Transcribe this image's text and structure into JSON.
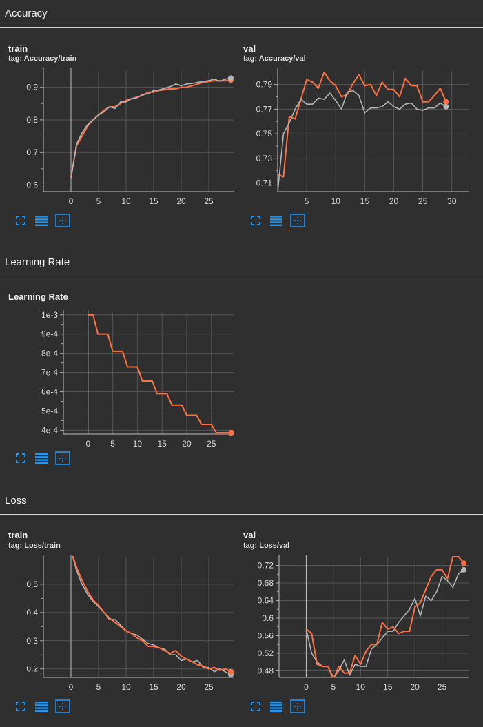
{
  "sections": {
    "accuracy": "Accuracy",
    "learning_rate": "Learning Rate",
    "loss": "Loss"
  },
  "cards": {
    "acc_train": {
      "title": "train",
      "tag": "tag: Accuracy/train"
    },
    "acc_val": {
      "title": "val",
      "tag": "tag: Accuracy/val"
    },
    "lr": {
      "title": "Learning Rate",
      "tag": ""
    },
    "loss_train": {
      "title": "train",
      "tag": "tag: Loss/train"
    },
    "loss_val": {
      "title": "val",
      "tag": "tag: Loss/val"
    }
  },
  "toolbar_icons": [
    "fullscreen-icon",
    "data-table-icon",
    "fit-domain-icon"
  ],
  "colors": {
    "orange": "#ff7043",
    "gray": "#b5b5b5",
    "accent": "#2196f3"
  },
  "chart_data": [
    {
      "id": "acc_train",
      "type": "line",
      "title": "train",
      "xlim": [
        -5,
        29.5
      ],
      "ylim": [
        0.58,
        0.95
      ],
      "xticks": [
        0,
        5,
        10,
        15,
        20,
        25
      ],
      "yticks": [
        0.6,
        0.7,
        0.8,
        0.9
      ],
      "ytick_labels": [
        "0.6",
        "0.7",
        "0.8",
        "0.9"
      ],
      "series": [
        {
          "color": "orange",
          "x": [
            0,
            1,
            2,
            3,
            4,
            5,
            6,
            7,
            8,
            9,
            10,
            11,
            12,
            13,
            14,
            15,
            16,
            17,
            18,
            19,
            20,
            21,
            22,
            23,
            24,
            25,
            26,
            27,
            28,
            29
          ],
          "y": [
            0.625,
            0.72,
            0.75,
            0.78,
            0.8,
            0.815,
            0.83,
            0.84,
            0.84,
            0.85,
            0.86,
            0.865,
            0.87,
            0.875,
            0.885,
            0.885,
            0.89,
            0.893,
            0.895,
            0.895,
            0.9,
            0.9,
            0.905,
            0.91,
            0.915,
            0.918,
            0.92,
            0.92,
            0.92,
            0.922
          ]
        },
        {
          "color": "gray",
          "x": [
            0,
            1,
            2,
            3,
            4,
            5,
            6,
            7,
            8,
            9,
            10,
            11,
            12,
            13,
            14,
            15,
            16,
            17,
            18,
            19,
            20,
            21,
            22,
            23,
            24,
            25,
            26,
            27,
            28,
            29
          ],
          "y": [
            0.62,
            0.725,
            0.76,
            0.785,
            0.8,
            0.815,
            0.825,
            0.84,
            0.835,
            0.855,
            0.855,
            0.865,
            0.868,
            0.878,
            0.88,
            0.89,
            0.892,
            0.897,
            0.902,
            0.91,
            0.905,
            0.91,
            0.912,
            0.915,
            0.918,
            0.92,
            0.925,
            0.918,
            0.925,
            0.928
          ]
        }
      ]
    },
    {
      "id": "acc_val",
      "type": "line",
      "title": "val",
      "xlim": [
        0,
        33
      ],
      "ylim": [
        0.703,
        0.801
      ],
      "xticks": [
        5,
        10,
        15,
        20,
        25,
        30
      ],
      "yticks": [
        0.71,
        0.73,
        0.75,
        0.77,
        0.79
      ],
      "ytick_labels": [
        "0.71",
        "0.73",
        "0.75",
        "0.77",
        "0.79"
      ],
      "series": [
        {
          "color": "orange",
          "x": [
            0,
            1,
            2,
            3,
            4,
            5,
            6,
            7,
            8,
            9,
            10,
            11,
            12,
            13,
            14,
            15,
            16,
            17,
            18,
            19,
            20,
            21,
            22,
            23,
            24,
            25,
            26,
            27,
            28,
            29
          ],
          "y": [
            0.717,
            0.715,
            0.764,
            0.762,
            0.778,
            0.794,
            0.792,
            0.787,
            0.8,
            0.793,
            0.789,
            0.78,
            0.782,
            0.791,
            0.798,
            0.789,
            0.79,
            0.781,
            0.792,
            0.786,
            0.786,
            0.78,
            0.795,
            0.789,
            0.789,
            0.776,
            0.776,
            0.781,
            0.787,
            0.776
          ]
        },
        {
          "color": "gray",
          "x": [
            0,
            1,
            2,
            3,
            4,
            5,
            6,
            7,
            8,
            9,
            10,
            11,
            12,
            13,
            14,
            15,
            16,
            17,
            18,
            19,
            20,
            21,
            22,
            23,
            24,
            25,
            26,
            27,
            28,
            29
          ],
          "y": [
            0.703,
            0.75,
            0.759,
            0.77,
            0.778,
            0.774,
            0.774,
            0.779,
            0.778,
            0.783,
            0.777,
            0.77,
            0.784,
            0.785,
            0.781,
            0.767,
            0.771,
            0.771,
            0.772,
            0.776,
            0.772,
            0.77,
            0.774,
            0.775,
            0.77,
            0.769,
            0.771,
            0.771,
            0.775,
            0.772
          ]
        }
      ]
    },
    {
      "id": "lr",
      "type": "line",
      "title": "Learning Rate",
      "xlim": [
        -5,
        29.5
      ],
      "ylim": [
        0.00038,
        0.00101
      ],
      "xticks": [
        0,
        5,
        10,
        15,
        20,
        25
      ],
      "yticks": [
        0.0004,
        0.0005,
        0.0006,
        0.0007,
        0.0008,
        0.0009,
        0.001
      ],
      "ytick_labels": [
        "4e-4",
        "5e-4",
        "6e-4",
        "7e-4",
        "8e-4",
        "9e-4",
        "1e-3"
      ],
      "series": [
        {
          "color": "gray",
          "x": [
            0,
            1,
            2,
            3,
            4,
            5,
            6,
            7,
            8,
            9,
            10,
            11,
            12,
            13,
            14,
            15,
            16,
            17,
            18,
            19,
            20,
            21,
            22,
            23,
            24,
            25,
            26,
            27,
            28,
            29
          ],
          "y": [
            0.001,
            0.001,
            0.0009,
            0.0009,
            0.0009,
            0.00081,
            0.00081,
            0.00081,
            0.000729,
            0.000729,
            0.000729,
            0.000656,
            0.000656,
            0.000656,
            0.00059,
            0.00059,
            0.00059,
            0.000531,
            0.000531,
            0.000531,
            0.000478,
            0.000478,
            0.000478,
            0.00043,
            0.00043,
            0.00043,
            0.000387,
            0.000387,
            0.000387,
            0.000387
          ]
        },
        {
          "color": "orange",
          "x": [
            0,
            1,
            2,
            3,
            4,
            5,
            6,
            7,
            8,
            9,
            10,
            11,
            12,
            13,
            14,
            15,
            16,
            17,
            18,
            19,
            20,
            21,
            22,
            23,
            24,
            25,
            26,
            27,
            28,
            29
          ],
          "y": [
            0.001,
            0.001,
            0.0009,
            0.0009,
            0.0009,
            0.00081,
            0.00081,
            0.00081,
            0.000729,
            0.000729,
            0.000729,
            0.000656,
            0.000656,
            0.000656,
            0.00059,
            0.00059,
            0.00059,
            0.000531,
            0.000531,
            0.000531,
            0.000478,
            0.000478,
            0.000478,
            0.00043,
            0.00043,
            0.00043,
            0.000387,
            0.000387,
            0.000387,
            0.000387
          ]
        }
      ]
    },
    {
      "id": "loss_train",
      "type": "line",
      "title": "train",
      "xlim": [
        -5,
        29.5
      ],
      "ylim": [
        0.17,
        0.595
      ],
      "xticks": [
        0,
        5,
        10,
        15,
        20,
        25
      ],
      "yticks": [
        0.2,
        0.3,
        0.4,
        0.5
      ],
      "ytick_labels": [
        "0.2",
        "0.3",
        "0.4",
        "0.5"
      ],
      "series": [
        {
          "color": "gray",
          "x": [
            0,
            1,
            2,
            3,
            4,
            5,
            6,
            7,
            8,
            9,
            10,
            11,
            12,
            13,
            14,
            15,
            16,
            17,
            18,
            19,
            20,
            21,
            22,
            23,
            24,
            25,
            26,
            27,
            28,
            29
          ],
          "y": [
            0.62,
            0.55,
            0.5,
            0.465,
            0.44,
            0.42,
            0.4,
            0.375,
            0.375,
            0.355,
            0.335,
            0.325,
            0.32,
            0.305,
            0.29,
            0.285,
            0.275,
            0.27,
            0.25,
            0.25,
            0.23,
            0.235,
            0.225,
            0.23,
            0.205,
            0.205,
            0.19,
            0.2,
            0.19,
            0.18
          ]
        },
        {
          "color": "orange",
          "x": [
            0,
            1,
            2,
            3,
            4,
            5,
            6,
            7,
            8,
            9,
            10,
            11,
            12,
            13,
            14,
            15,
            16,
            17,
            18,
            19,
            20,
            21,
            22,
            23,
            24,
            25,
            26,
            27,
            28,
            29
          ],
          "y": [
            0.62,
            0.56,
            0.515,
            0.475,
            0.445,
            0.425,
            0.4,
            0.38,
            0.365,
            0.35,
            0.335,
            0.325,
            0.31,
            0.3,
            0.28,
            0.28,
            0.275,
            0.265,
            0.255,
            0.265,
            0.245,
            0.235,
            0.225,
            0.215,
            0.21,
            0.2,
            0.205,
            0.195,
            0.2,
            0.19
          ]
        }
      ]
    },
    {
      "id": "loss_val",
      "type": "line",
      "title": "val",
      "xlim": [
        -5,
        30
      ],
      "ylim": [
        0.465,
        0.738
      ],
      "xticks": [
        0,
        5,
        10,
        15,
        20,
        25
      ],
      "yticks": [
        0.48,
        0.52,
        0.56,
        0.6,
        0.64,
        0.68,
        0.72
      ],
      "ytick_labels": [
        "0.48",
        "0.52",
        "0.56",
        "0.6",
        "0.64",
        "0.68",
        "0.72"
      ],
      "series": [
        {
          "color": "gray",
          "x": [
            0,
            1,
            2,
            3,
            4,
            5,
            6,
            7,
            8,
            9,
            10,
            11,
            12,
            13,
            14,
            15,
            16,
            17,
            18,
            19,
            20,
            21,
            22,
            23,
            24,
            25,
            26,
            27,
            28,
            29
          ],
          "y": [
            0.575,
            0.52,
            0.5,
            0.49,
            0.49,
            0.465,
            0.48,
            0.505,
            0.47,
            0.495,
            0.49,
            0.49,
            0.53,
            0.54,
            0.555,
            0.57,
            0.57,
            0.59,
            0.605,
            0.62,
            0.645,
            0.605,
            0.65,
            0.64,
            0.66,
            0.695,
            0.685,
            0.67,
            0.7,
            0.71
          ]
        },
        {
          "color": "orange",
          "x": [
            0,
            1,
            2,
            3,
            4,
            5,
            6,
            7,
            8,
            9,
            10,
            11,
            12,
            13,
            14,
            15,
            16,
            17,
            18,
            19,
            20,
            21,
            22,
            23,
            24,
            25,
            26,
            27,
            28,
            29
          ],
          "y": [
            0.575,
            0.565,
            0.495,
            0.49,
            0.49,
            0.46,
            0.49,
            0.475,
            0.475,
            0.515,
            0.495,
            0.525,
            0.54,
            0.54,
            0.59,
            0.575,
            0.58,
            0.565,
            0.57,
            0.57,
            0.625,
            0.635,
            0.665,
            0.695,
            0.71,
            0.71,
            0.69,
            0.74,
            0.74,
            0.725
          ]
        }
      ]
    }
  ]
}
